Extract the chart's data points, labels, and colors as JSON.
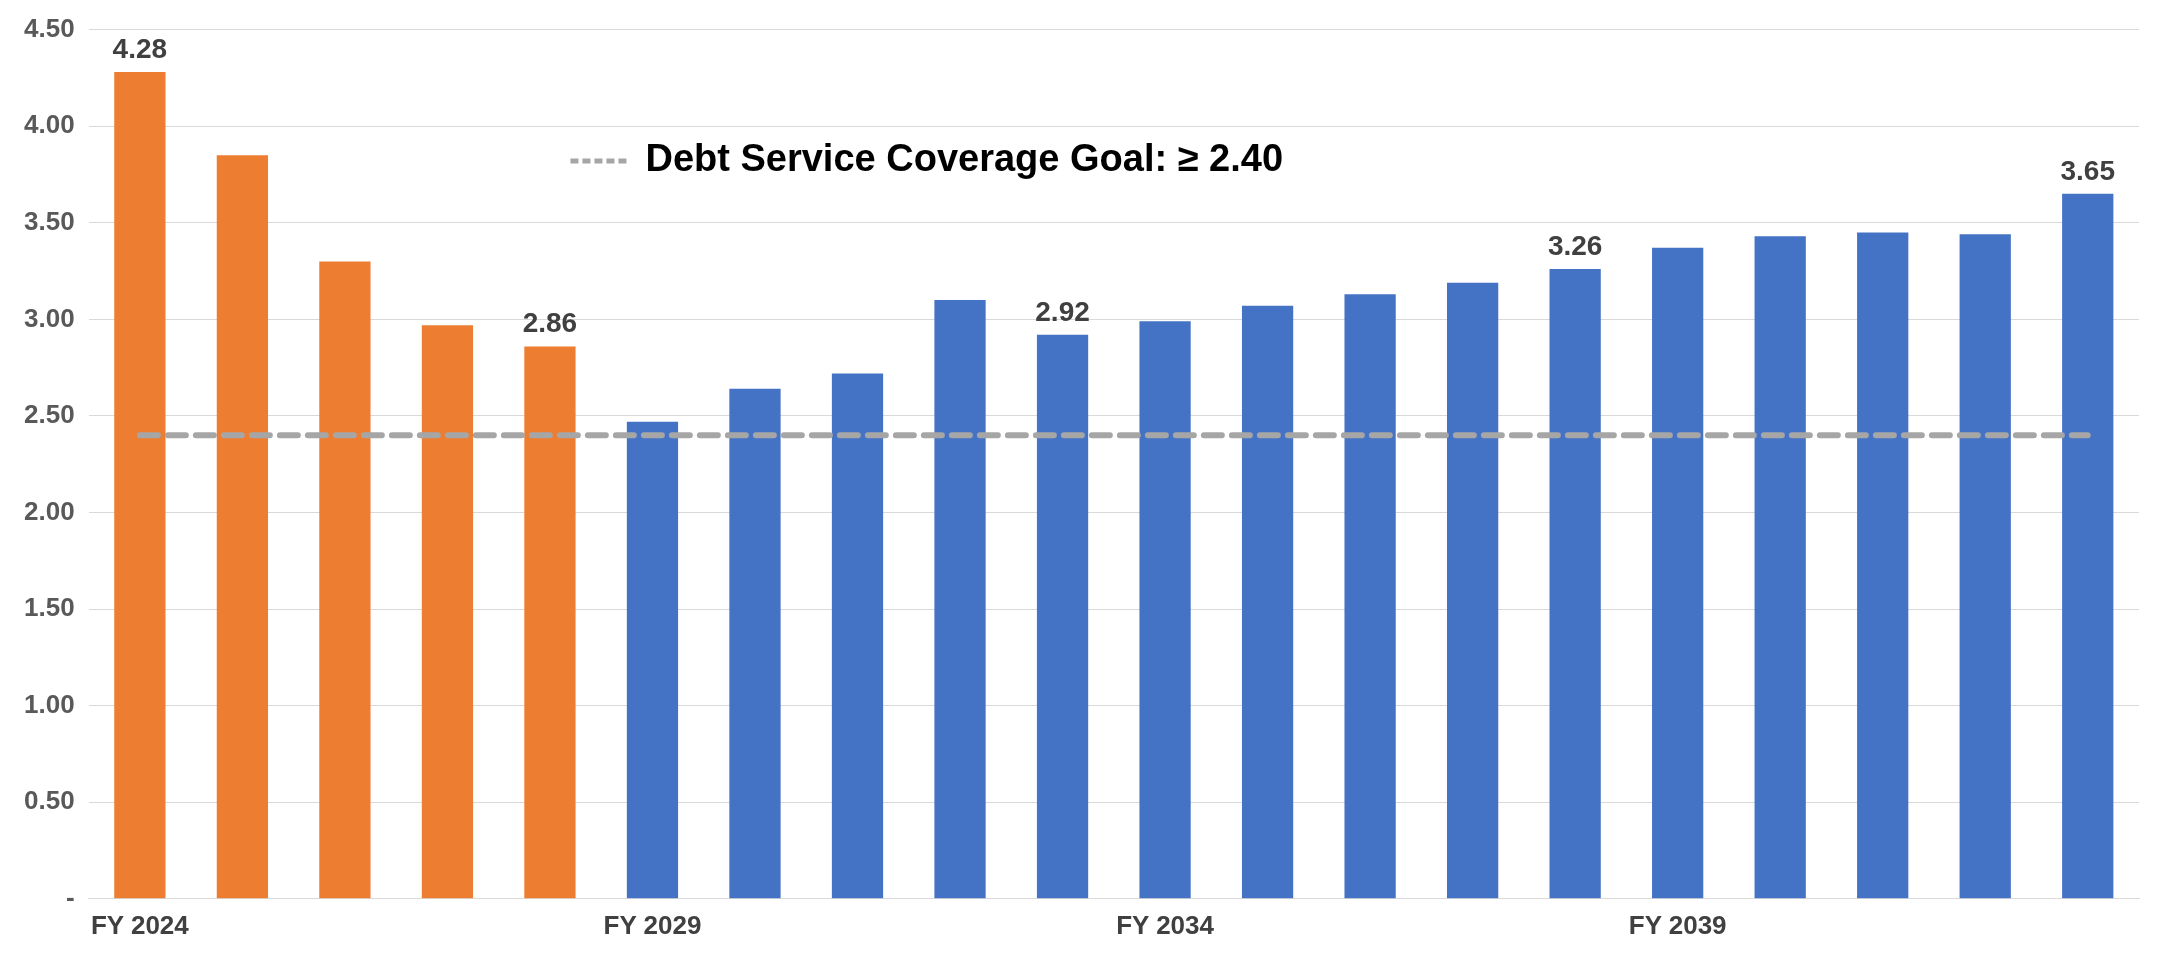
{
  "chart_data": {
    "type": "bar",
    "categories": [
      "FY 2024",
      null,
      null,
      null,
      null,
      "FY 2029",
      null,
      null,
      null,
      null,
      "FY 2034",
      null,
      null,
      null,
      null,
      "FY 2039",
      null,
      null,
      null,
      null
    ],
    "values": [
      4.28,
      3.85,
      3.3,
      2.97,
      2.86,
      2.47,
      2.64,
      2.72,
      3.1,
      2.92,
      2.99,
      3.07,
      3.13,
      3.19,
      3.26,
      3.37,
      3.43,
      3.45,
      3.44,
      3.65
    ],
    "colors": [
      "#ed7d31",
      "#ed7d31",
      "#ed7d31",
      "#ed7d31",
      "#ed7d31",
      "#4472c4",
      "#4472c4",
      "#4472c4",
      "#4472c4",
      "#4472c4",
      "#4472c4",
      "#4472c4",
      "#4472c4",
      "#4472c4",
      "#4472c4",
      "#4472c4",
      "#4472c4",
      "#4472c4",
      "#4472c4",
      "#4472c4"
    ],
    "value_labels": [
      "4.28",
      null,
      null,
      null,
      "2.86",
      null,
      null,
      null,
      null,
      "2.92",
      null,
      null,
      null,
      null,
      "3.26",
      null,
      null,
      null,
      null,
      "3.65"
    ],
    "ylim": [
      0,
      4.5
    ],
    "yticks": [
      {
        "value": 0,
        "label": "-"
      },
      {
        "value": 0.5,
        "label": "0.50"
      },
      {
        "value": 1,
        "label": "1.00"
      },
      {
        "value": 1.5,
        "label": "1.50"
      },
      {
        "value": 2,
        "label": "2.00"
      },
      {
        "value": 2.5,
        "label": "2.50"
      },
      {
        "value": 3,
        "label": "3.00"
      },
      {
        "value": 3.5,
        "label": "3.50"
      },
      {
        "value": 4,
        "label": "4.00"
      },
      {
        "value": 4.5,
        "label": "4.50"
      }
    ],
    "grid": "y",
    "ref_lines": [
      {
        "axis": "y",
        "value": 2.4,
        "label": "Debt Service Coverage Goal: ≥ 2.40",
        "color": "#a6a6a6",
        "line_style": "dashed"
      }
    ]
  }
}
